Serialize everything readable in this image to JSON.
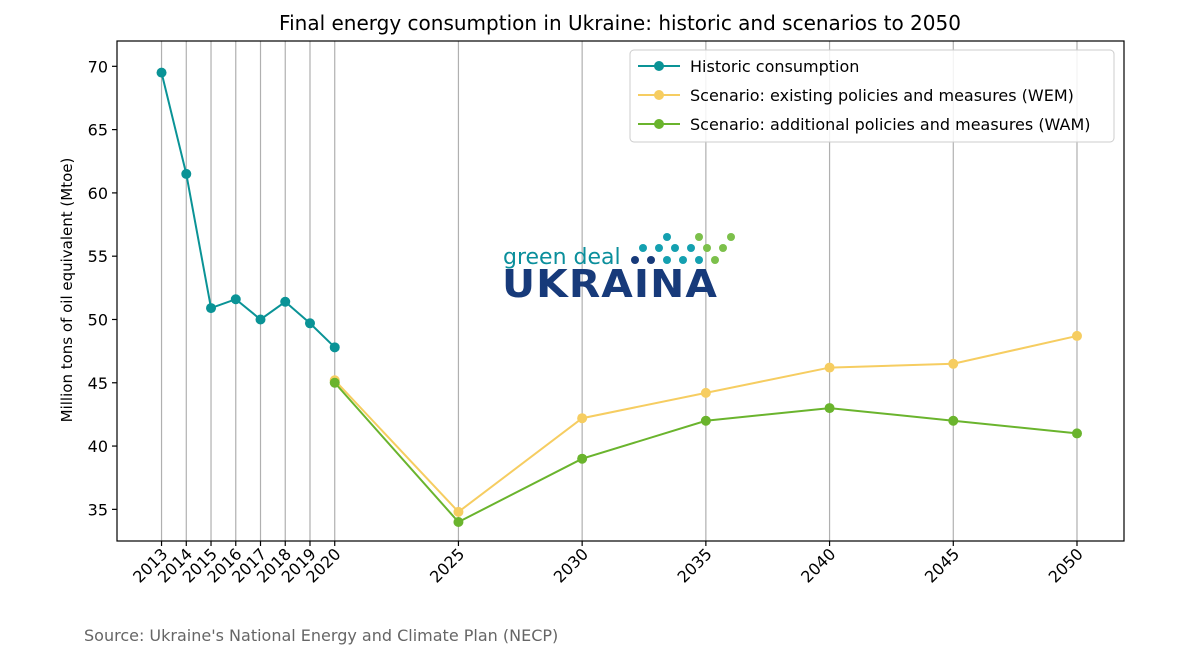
{
  "chart_data": {
    "type": "line",
    "title": "Final energy consumption in Ukraine: historic and scenarios to 2050",
    "ylabel": "Million tons of oil equivalent (Mtoe)",
    "xlabel": "",
    "ylim": [
      32.5,
      72
    ],
    "yticks": [
      35,
      40,
      45,
      50,
      55,
      60,
      65,
      70
    ],
    "xticks": [
      2013,
      2014,
      2015,
      2016,
      2017,
      2018,
      2019,
      2020,
      2025,
      2030,
      2035,
      2040,
      2045,
      2050
    ],
    "grid": "vertical lines at each x tick",
    "legend_position": "top-right",
    "series": [
      {
        "name": "Historic consumption",
        "color": "#0a9396",
        "x": [
          2013,
          2014,
          2015,
          2016,
          2017,
          2018,
          2019,
          2020
        ],
        "y": [
          69.5,
          61.5,
          50.9,
          51.6,
          50.0,
          51.4,
          49.7,
          47.8
        ]
      },
      {
        "name": "Scenario: existing policies and measures (WEM)",
        "color": "#f6cd61",
        "x": [
          2020,
          2025,
          2030,
          2035,
          2040,
          2045,
          2050
        ],
        "y": [
          45.2,
          34.8,
          42.2,
          44.2,
          46.2,
          46.5,
          48.7
        ]
      },
      {
        "name": "Scenario: additional policies and measures (WAM)",
        "color": "#6ab42d",
        "x": [
          2020,
          2025,
          2030,
          2035,
          2040,
          2045,
          2050
        ],
        "y": [
          45.0,
          34.0,
          39.0,
          42.0,
          43.0,
          42.0,
          41.0
        ]
      }
    ]
  },
  "logo": {
    "line1": "green deal",
    "line2": "UKRAINA",
    "colors": {
      "text1": "#0b8f9c",
      "text2": "#173a7a",
      "dot_dark": "#173a7a",
      "dot_teal": "#14a0b0",
      "dot_green": "#7cc04b"
    }
  },
  "colors": {
    "axis": "#000000",
    "grid": "#b0b0b0"
  },
  "source_text": "Source: Ukraine's National Energy and Climate Plan (NECP)"
}
